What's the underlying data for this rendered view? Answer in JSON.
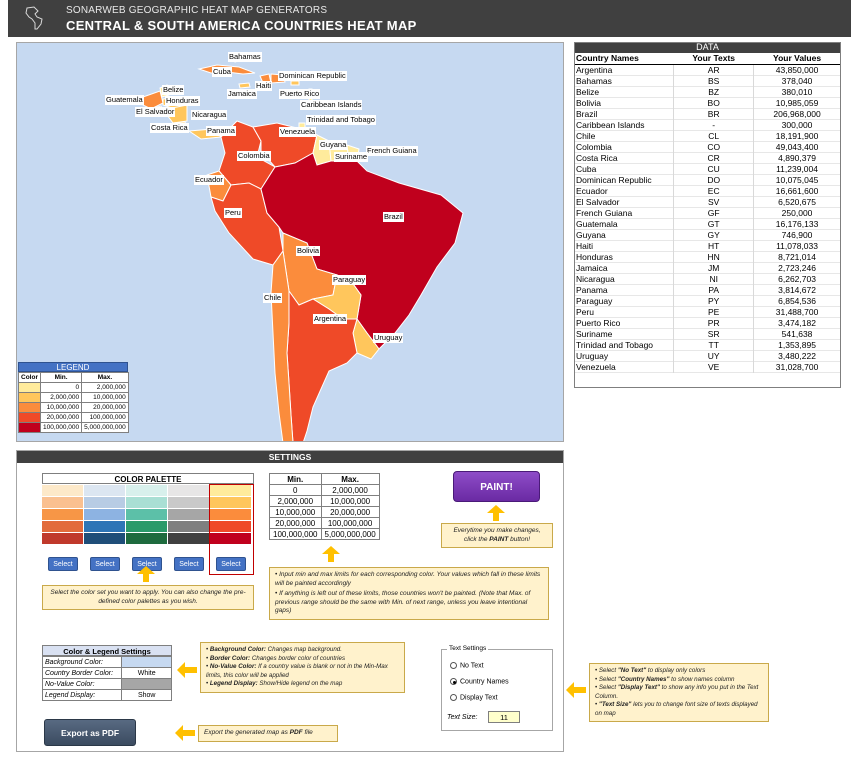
{
  "header": {
    "subtitle": "SONARWEB GEOGRAPHIC HEAT MAP GENERATORS",
    "title": "CENTRAL & SOUTH AMERICA COUNTRIES HEAT MAP",
    "logo_icon": "america-continent-icon"
  },
  "map": {
    "background_color": "#c6d9f1",
    "labels": {
      "bahamas": "Bahamas",
      "cuba": "Cuba",
      "dominican": "Dominican Republic",
      "belize": "Belize",
      "haiti": "Haiti",
      "jamaica": "Jamaica",
      "puerto_rico": "Puerto Rico",
      "guatemala": "Guatemala",
      "honduras": "Honduras",
      "caribbean": "Caribbean Islands",
      "el_salvador": "El Salvador",
      "nicaragua": "Nicaragua",
      "trinidad": "Trinidad and Tobago",
      "costa_rica": "Costa Rica",
      "panama": "Panama",
      "venezuela": "Venezuela",
      "guyana": "Guyana",
      "french_guiana": "French Guiana",
      "suriname": "Suriname",
      "colombia": "Colombia",
      "ecuador": "Ecuador",
      "peru": "Peru",
      "brazil": "Brazil",
      "bolivia": "Bolivia",
      "paraguay": "Paraguay",
      "chile": "Chile",
      "argentina": "Argentina",
      "uruguay": "Uruguay"
    }
  },
  "legend": {
    "title": "LEGEND",
    "headers": [
      "Color",
      "Min.",
      "Max."
    ],
    "rows": [
      {
        "color": "#ffeb9c",
        "min": "0",
        "max": "2,000,000"
      },
      {
        "color": "#ffc65c",
        "min": "2,000,000",
        "max": "10,000,000"
      },
      {
        "color": "#fb8c3c",
        "min": "10,000,000",
        "max": "20,000,000"
      },
      {
        "color": "#ef4a28",
        "min": "20,000,000",
        "max": "100,000,000"
      },
      {
        "color": "#c0001d",
        "min": "100,000,000",
        "max": "5,000,000,000"
      }
    ]
  },
  "data_table": {
    "title": "DATA",
    "headers": [
      "Country Names",
      "Your Texts",
      "Your Values"
    ],
    "rows": [
      [
        "Argentina",
        "AR",
        "43,850,000"
      ],
      [
        "Bahamas",
        "BS",
        "378,040"
      ],
      [
        "Belize",
        "BZ",
        "380,010"
      ],
      [
        "Bolivia",
        "BO",
        "10,985,059"
      ],
      [
        "Brazil",
        "BR",
        "206,968,000"
      ],
      [
        "Caribbean Islands",
        "-",
        "300,000"
      ],
      [
        "Chile",
        "CL",
        "18,191,900"
      ],
      [
        "Colombia",
        "CO",
        "49,043,400"
      ],
      [
        "Costa Rica",
        "CR",
        "4,890,379"
      ],
      [
        "Cuba",
        "CU",
        "11,239,004"
      ],
      [
        "Dominican Republic",
        "DO",
        "10,075,045"
      ],
      [
        "Ecuador",
        "EC",
        "16,661,600"
      ],
      [
        "El Salvador",
        "SV",
        "6,520,675"
      ],
      [
        "French Guiana",
        "GF",
        "250,000"
      ],
      [
        "Guatemala",
        "GT",
        "16,176,133"
      ],
      [
        "Guyana",
        "GY",
        "746,900"
      ],
      [
        "Haiti",
        "HT",
        "11,078,033"
      ],
      [
        "Honduras",
        "HN",
        "8,721,014"
      ],
      [
        "Jamaica",
        "JM",
        "2,723,246"
      ],
      [
        "Nicaragua",
        "NI",
        "6,262,703"
      ],
      [
        "Panama",
        "PA",
        "3,814,672"
      ],
      [
        "Paraguay",
        "PY",
        "6,854,536"
      ],
      [
        "Peru",
        "PE",
        "31,488,700"
      ],
      [
        "Puerto Rico",
        "PR",
        "3,474,182"
      ],
      [
        "Suriname",
        "SR",
        "541,638"
      ],
      [
        "Trinidad and Tobago",
        "TT",
        "1,353,895"
      ],
      [
        "Uruguay",
        "UY",
        "3,480,222"
      ],
      [
        "Venezuela",
        "VE",
        "31,028,700"
      ]
    ]
  },
  "settings": {
    "title": "SETTINGS",
    "palette": {
      "title": "COLOR PALETTE",
      "columns": [
        [
          "#fde9c9",
          "#fac090",
          "#f79646",
          "#e26b3b",
          "#c0392b"
        ],
        [
          "#dce6f1",
          "#b8cce4",
          "#8db3e2",
          "#2e75b6",
          "#1f4e79"
        ],
        [
          "#d8f0ec",
          "#a9dfd4",
          "#5cc0a8",
          "#2b9a6a",
          "#1e6b3e"
        ],
        [
          "#e7e6e6",
          "#c9c9c9",
          "#a6a6a6",
          "#7f7f7f",
          "#404040"
        ],
        [
          "#ffeb9c",
          "#ffc65c",
          "#fb8c3c",
          "#ef4a28",
          "#c0001d"
        ]
      ],
      "select_label": "Select"
    },
    "minmax": {
      "headers": [
        "Min.",
        "Max."
      ],
      "rows": [
        [
          "0",
          "2,000,000"
        ],
        [
          "2,000,000",
          "10,000,000"
        ],
        [
          "10,000,000",
          "20,000,000"
        ],
        [
          "20,000,000",
          "100,000,000"
        ],
        [
          "100,000,000",
          "5,000,000,000"
        ]
      ]
    },
    "paint_label": "PAINT!",
    "paint_note_1": "Everytime you make changes, click the ",
    "paint_note_bold": "PAINT",
    "paint_note_2": " button!",
    "palette_note": "Select the color set you want to apply. You can also change the pre-defined color palettes as you wish.",
    "minmax_note_1": "Input min and max limits for each corresponding color. Your values which fall in these limits will be painted accordingly",
    "minmax_note_2": "If anything is left out of these limits, those countries won't be painted. (Note that Max. of previous range should be the same with Min. of next range, unless you leave intentional gaps)",
    "color_legend": {
      "title": "Color & Legend Settings",
      "rows": [
        {
          "label": "Background Color:",
          "value": "",
          "swatch": "#c6d9f1"
        },
        {
          "label": "Country Border Color:",
          "value": "White",
          "swatch": "#ffffff"
        },
        {
          "label": "No-Value Color:",
          "value": "",
          "swatch": "#a6a6a6"
        },
        {
          "label": "Legend Display:",
          "value": "Show",
          "swatch": "#ffffff"
        }
      ]
    },
    "color_notes": [
      {
        "bold": "Background Color:",
        "text": " Changes map background."
      },
      {
        "bold": "Border Color:",
        "text": " Changes border color of countries"
      },
      {
        "bold": "No-Value Color:",
        "text": " If a country value is blank or not in the Min-Max limits, this color will be applied"
      },
      {
        "bold": "Legend Display:",
        "text": " Show/Hide legend on the map"
      }
    ],
    "export_label": "Export as PDF",
    "export_note_1": "Export the generated map as ",
    "export_note_bold": "PDF",
    "export_note_2": " file",
    "text_settings": {
      "title": "Text Settings",
      "options": [
        "No Text",
        "Country Names",
        "Display Text"
      ],
      "selected": 1,
      "size_label": "Text Size:",
      "size_value": "11"
    },
    "text_notes": [
      {
        "pre": "Select ",
        "bold": "\"No Text\"",
        "text": " to display only colors"
      },
      {
        "pre": "Select ",
        "bold": "\"Country Names\"",
        "text": " to show names column"
      },
      {
        "pre": "Select ",
        "bold": "\"Display Text\"",
        "text": " to show any info you put in the Text Column."
      },
      {
        "pre": "",
        "bold": "\"Text Size\"",
        "text": " lets you to change font size of texts displayed on map"
      }
    ]
  }
}
